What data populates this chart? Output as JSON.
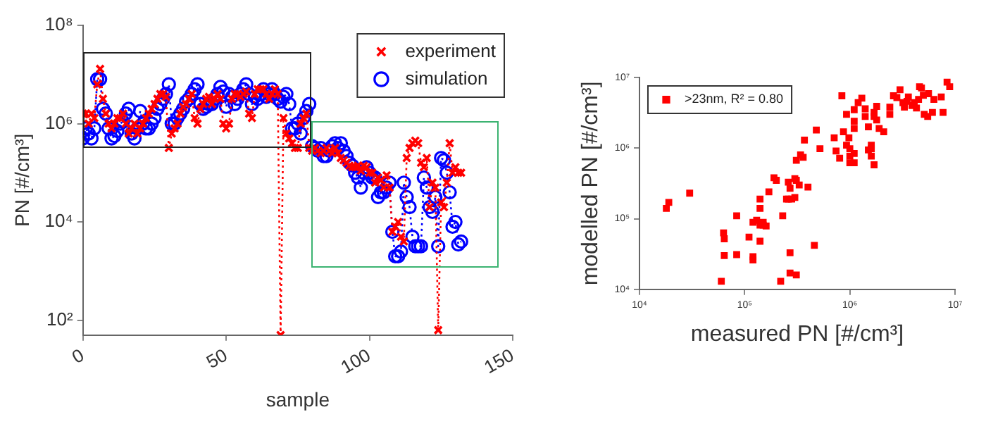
{
  "chart_data": [
    {
      "type": "line",
      "xlabel": "sample",
      "ylabel": "PN [#/cm³]",
      "log": "y",
      "legend": "top right",
      "line_style": "dotted",
      "xlim": [
        0,
        150
      ],
      "xticks": [
        0,
        50,
        100,
        150
      ],
      "ylim": [
        50,
        100000000.0
      ],
      "yticks": [
        {
          "value": 100,
          "label": "10²"
        },
        {
          "value": 10000.0,
          "label": "10⁴"
        },
        {
          "value": 1000000.0,
          "label": "10⁶"
        },
        {
          "value": 100000000.0,
          "label": "10⁸"
        }
      ],
      "x": [
        0,
        1,
        2,
        3,
        4,
        5,
        6,
        7,
        8,
        9,
        10,
        11,
        12,
        13,
        14,
        15,
        16,
        17,
        18,
        19,
        20,
        21,
        22,
        23,
        24,
        25,
        26,
        27,
        28,
        29,
        30,
        31,
        32,
        33,
        34,
        35,
        36,
        37,
        38,
        39,
        40,
        41,
        42,
        43,
        44,
        45,
        46,
        47,
        48,
        49,
        50,
        51,
        52,
        53,
        54,
        55,
        56,
        57,
        58,
        59,
        60,
        61,
        62,
        63,
        64,
        65,
        66,
        67,
        68,
        69,
        70,
        71,
        72,
        73,
        74,
        75,
        76,
        77,
        78,
        79,
        80,
        81,
        82,
        83,
        84,
        85,
        86,
        87,
        88,
        89,
        90,
        91,
        92,
        93,
        94,
        95,
        96,
        97,
        98,
        99,
        100,
        101,
        102,
        103,
        104,
        105,
        106,
        107,
        108,
        109,
        110,
        111,
        112,
        113,
        114,
        115,
        116,
        117,
        118,
        119,
        120,
        121,
        122,
        123,
        124,
        125,
        126,
        127,
        128,
        129,
        130,
        131,
        132
      ],
      "series": [
        {
          "name": "experiment",
          "color": "#ff0000",
          "marker": "cross",
          "values": [
            1600000.0,
            1600000.0,
            1000000.0,
            1600000.0,
            1300000.0,
            6300000.0,
            13000000.0,
            3200000.0,
            1600000.0,
            1000000.0,
            800000.0,
            1000000.0,
            1300000.0,
            1300000.0,
            1600000.0,
            1000000.0,
            630000.0,
            800000.0,
            1000000.0,
            630000.0,
            800000.0,
            1000000.0,
            1300000.0,
            1600000.0,
            2000000.0,
            2500000.0,
            3200000.0,
            4000000.0,
            4000000.0,
            3500000.0,
            320000.0,
            630000.0,
            800000.0,
            1000000.0,
            1600000.0,
            2200000.0,
            2500000.0,
            3200000.0,
            4000000.0,
            1300000.0,
            1000000.0,
            2000000.0,
            2500000.0,
            3200000.0,
            3500000.0,
            2500000.0,
            3200000.0,
            4000000.0,
            3200000.0,
            1000000.0,
            800000.0,
            1000000.0,
            3200000.0,
            4000000.0,
            4000000.0,
            3500000.0,
            4000000.0,
            4500000.0,
            1600000.0,
            1300000.0,
            4000000.0,
            5000000.0,
            5000000.0,
            5000000.0,
            4000000.0,
            3200000.0,
            4000000.0,
            5000000.0,
            4000000.0,
            50,
            1300000.0,
            630000.0,
            500000.0,
            400000.0,
            320000.0,
            320000.0,
            1000000.0,
            1300000.0,
            1600000.0,
            320000.0,
            280000.0,
            320000.0,
            280000.0,
            250000.0,
            280000.0,
            320000.0,
            280000.0,
            250000.0,
            320000.0,
            250000.0,
            200000.0,
            180000.0,
            160000.0,
            140000.0,
            130000.0,
            130000.0,
            140000.0,
            110000.0,
            140000.0,
            130000.0,
            100000.0,
            100000.0,
            63000.0,
            80000.0,
            71000.0,
            50000.0,
            89000.0,
            50000.0,
            6300.0,
            8000.0,
            10000.0,
            5000.0,
            4000.0,
            200000.0,
            320000.0,
            400000.0,
            450000.0,
            400000.0,
            160000.0,
            130000.0,
            200000.0,
            20000.0,
            63000.0,
            50000.0,
            63,
            25000.0,
            20000.0,
            63000.0,
            400000.0,
            100000.0,
            130000.0,
            100000.0,
            100000.0
          ]
        },
        {
          "name": "simulation",
          "color": "#0000ff",
          "marker": "circle",
          "values": [
            500000.0,
            800000.0,
            630000.0,
            500000.0,
            800000.0,
            8000000.0,
            8000000.0,
            2000000.0,
            1600000.0,
            800000.0,
            500000.0,
            560000.0,
            710000.0,
            1000000.0,
            1100000.0,
            1600000.0,
            2000000.0,
            630000.0,
            500000.0,
            800000.0,
            1800000.0,
            1000000.0,
            800000.0,
            800000.0,
            1000000.0,
            1300000.0,
            2000000.0,
            2500000.0,
            3200000.0,
            4000000.0,
            6300000.0,
            1000000.0,
            1000000.0,
            1300000.0,
            1600000.0,
            2000000.0,
            2800000.0,
            3200000.0,
            4000000.0,
            5000000.0,
            6300000.0,
            2500000.0,
            2000000.0,
            2200000.0,
            2500000.0,
            2500000.0,
            3200000.0,
            4000000.0,
            5600000.0,
            4500000.0,
            2200000.0,
            4000000.0,
            3500000.0,
            2500000.0,
            3200000.0,
            4000000.0,
            5000000.0,
            6300000.0,
            4000000.0,
            2500000.0,
            3500000.0,
            3200000.0,
            4000000.0,
            5000000.0,
            3500000.0,
            4000000.0,
            5000000.0,
            4000000.0,
            3200000.0,
            2800000.0,
            3500000.0,
            4000000.0,
            2500000.0,
            800000.0,
            800000.0,
            1000000.0,
            630000.0,
            1300000.0,
            1800000.0,
            2500000.0,
            350000.0,
            320000.0,
            280000.0,
            320000.0,
            220000.0,
            220000.0,
            280000.0,
            350000.0,
            400000.0,
            320000.0,
            400000.0,
            280000.0,
            220000.0,
            160000.0,
            140000.0,
            100000.0,
            80000.0,
            50000.0,
            100000.0,
            130000.0,
            100000.0,
            80000.0,
            80000.0,
            32000.0,
            40000.0,
            40000.0,
            50000.0,
            63000.0,
            6300.0,
            2000.0,
            2000.0,
            2500.0,
            63000.0,
            32000.0,
            20000.0,
            5000.0,
            3200.0,
            3200.0,
            3200.0,
            80000.0,
            50000.0,
            20000.0,
            16000.0,
            32000.0,
            3200.0,
            200000.0,
            180000.0,
            100000.0,
            40000.0,
            8000.0,
            10000.0,
            3500.0,
            4000.0
          ]
        }
      ]
    },
    {
      "type": "scatter",
      "xlabel": "measured PN [#/cm³]",
      "ylabel": "modelled PN [#/cm³]",
      "log": "xy",
      "legend": "top left",
      "marker": "square",
      "xlim": [
        10000.0,
        10000000.0
      ],
      "xticks": [
        {
          "value": 10000.0,
          "label": "10⁴"
        },
        {
          "value": 100000.0,
          "label": "10⁵"
        },
        {
          "value": 1000000.0,
          "label": "10⁶"
        },
        {
          "value": 10000000.0,
          "label": "10⁷"
        }
      ],
      "ylim": [
        10000.0,
        10000000.0
      ],
      "yticks": [
        {
          "value": 10000.0,
          "label": "10⁴"
        },
        {
          "value": 100000.0,
          "label": "10⁵"
        },
        {
          "value": 1000000.0,
          "label": "10⁶"
        },
        {
          "value": 10000000.0,
          "label": "10⁷"
        }
      ],
      "series": [
        {
          "name": ">23nm, R² = 0.80",
          "color": "#ff0000",
          "x": [
            18000.0,
            19000.0,
            30000.0,
            60000.0,
            64000.0,
            64000.0,
            63000.0,
            84000.0,
            84000.0,
            110000.0,
            120000.0,
            120000.0,
            120000.0,
            130000.0,
            140000.0,
            140000.0,
            140000.0,
            140000.0,
            150000.0,
            150000.0,
            160000.0,
            170000.0,
            190000.0,
            200000.0,
            220000.0,
            230000.0,
            250000.0,
            260000.0,
            270000.0,
            260000.0,
            270000.0,
            270000.0,
            280000.0,
            300000.0,
            300000.0,
            310000.0,
            310000.0,
            310000.0,
            330000.0,
            340000.0,
            360000.0,
            370000.0,
            400000.0,
            460000.0,
            480000.0,
            520000.0,
            710000.0,
            740000.0,
            800000.0,
            840000.0,
            870000.0,
            930000.0,
            930000.0,
            980000.0,
            1000000.0,
            1000000.0,
            1100000.0,
            1000000.0,
            1100000.0,
            1100000.0,
            1100000.0,
            1100000.0,
            1200000.0,
            1300000.0,
            1400000.0,
            1400000.0,
            1500000.0,
            1600000.0,
            1600000.0,
            1600000.0,
            1700000.0,
            1700000.0,
            1700000.0,
            1800000.0,
            1800000.0,
            1900000.0,
            2100000.0,
            2400000.0,
            2400000.0,
            2600000.0,
            2800000.0,
            3000000.0,
            3200000.0,
            3300000.0,
            3500000.0,
            3600000.0,
            3900000.0,
            4100000.0,
            4300000.0,
            4500000.0,
            4600000.0,
            4800000.0,
            5000000.0,
            5100000.0,
            5500000.0,
            5600000.0,
            6100000.0,
            6300000.0,
            7400000.0,
            7700000.0,
            8400000.0,
            8900000.0,
            1500000.0
          ],
          "values": [
            140000.0,
            170000.0,
            230000.0,
            13000.0,
            30000.0,
            52000.0,
            63000.0,
            31000.0,
            110000.0,
            55000.0,
            89000.0,
            29000.0,
            26000.0,
            95000.0,
            190000.0,
            140000.0,
            81000.0,
            48000.0,
            89000.0,
            81000.0,
            79000.0,
            240000.0,
            380000.0,
            350000.0,
            13000.0,
            110000.0,
            190000.0,
            330000.0,
            270000.0,
            190000.0,
            17000.0,
            33000.0,
            190000.0,
            370000.0,
            200000.0,
            16000.0,
            350000.0,
            670000.0,
            300000.0,
            800000.0,
            740000.0,
            1300000.0,
            280000.0,
            42000.0,
            1800000.0,
            980000.0,
            1400000.0,
            910000.0,
            720000.0,
            5500000.0,
            1700000.0,
            3000000.0,
            1100000.0,
            1400000.0,
            620000.0,
            770000.0,
            840000.0,
            980000.0,
            1900000.0,
            620000.0,
            3500000.0,
            2400000.0,
            4400000.0,
            5100000.0,
            3600000.0,
            2800000.0,
            2000000.0,
            770000.0,
            980000.0,
            1100000.0,
            2800000.0,
            580000.0,
            3200000.0,
            3900000.0,
            2500000.0,
            1900000.0,
            1700000.0,
            3800000.0,
            3000000.0,
            5500000.0,
            5200000.0,
            6700000.0,
            4400000.0,
            3800000.0,
            4600000.0,
            5300000.0,
            4000000.0,
            4400000.0,
            3700000.0,
            4900000.0,
            7400000.0,
            7100000.0,
            5600000.0,
            3000000.0,
            2800000.0,
            5900000.0,
            3200000.0,
            4900000.0,
            5300000.0,
            3200000.0,
            8600000.0,
            7400000.0,
            940000.0
          ]
        }
      ]
    }
  ]
}
